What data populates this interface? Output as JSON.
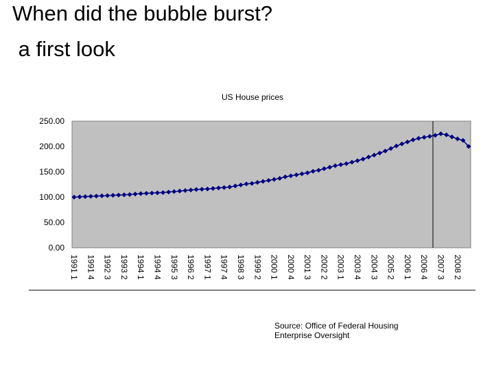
{
  "slide_title": [
    "When did the bubble burst?",
    " a first look"
  ],
  "source": [
    "Source: Office of Federal Housing",
    "Enterprise Oversight"
  ],
  "chart_data": {
    "type": "line",
    "title": "US House prices",
    "categories": [
      "1991 1",
      null,
      null,
      "1991 4",
      null,
      null,
      "1992 3",
      null,
      null,
      "1993 2",
      null,
      null,
      "1994 1",
      null,
      null,
      "1994 4",
      null,
      null,
      "1995 3",
      null,
      null,
      "1996 2",
      null,
      null,
      "1997 1",
      null,
      null,
      "1997 4",
      null,
      null,
      "1998 3",
      null,
      null,
      "1999 2",
      null,
      null,
      "2000 1",
      null,
      null,
      "2000 4",
      null,
      null,
      "2001 3",
      null,
      null,
      "2002 2",
      null,
      null,
      "2003 1",
      null,
      null,
      "2003 4",
      null,
      null,
      "2004 3",
      null,
      null,
      "2005 2",
      null,
      null,
      "2006 1",
      null,
      null,
      "2006 4",
      null,
      null,
      "2007 3",
      null,
      null,
      "2008 2",
      null,
      null
    ],
    "series": [
      {
        "color": "#000080",
        "values": [
          100,
          100.5,
          101,
          101.5,
          102,
          102.5,
          103,
          103.5,
          104,
          104.5,
          105,
          106,
          107,
          107.5,
          108,
          108.5,
          109,
          110,
          111,
          112,
          113,
          114,
          115,
          115.5,
          116,
          117,
          118,
          119,
          120,
          122,
          124,
          126,
          127,
          129,
          131,
          133,
          135,
          137,
          140,
          142,
          144,
          146,
          148,
          151,
          153,
          156,
          159,
          162,
          164,
          166,
          169,
          172,
          175,
          179,
          183,
          187,
          191,
          196,
          201,
          205,
          209,
          213,
          216,
          218,
          220,
          222,
          225,
          223,
          219,
          215,
          212,
          200
        ]
      }
    ],
    "ylim": [
      0,
      250
    ],
    "yticks": [
      {
        "value": 0,
        "label": "0.00"
      },
      {
        "value": 50,
        "label": "50.00"
      },
      {
        "value": 100,
        "label": "100.00"
      },
      {
        "value": 150,
        "label": "150.00"
      },
      {
        "value": 200,
        "label": "200.00"
      },
      {
        "value": 250,
        "label": "250.00"
      }
    ],
    "plot_background": "#c0c0c0"
  }
}
